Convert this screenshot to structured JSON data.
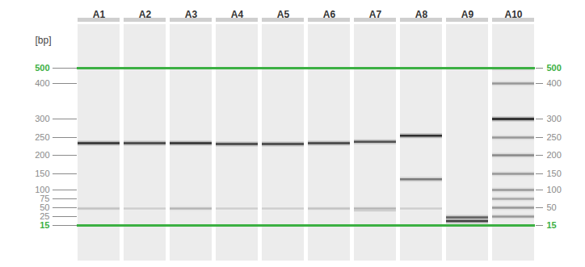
{
  "chart_data": {
    "type": "gel",
    "categories": [
      "A1",
      "A2",
      "A3",
      "A4",
      "A5",
      "A6",
      "A7",
      "A8",
      "A9",
      "A10"
    ],
    "y_label": "[bp]",
    "ylim": [
      15,
      500
    ],
    "yticks": [
      15,
      25,
      50,
      75,
      100,
      150,
      200,
      250,
      300,
      400,
      500
    ],
    "y2lim": [
      15,
      500
    ],
    "y2ticks": [
      15,
      50,
      100,
      150,
      200,
      250,
      300,
      400,
      500
    ],
    "markers": {
      "values": [
        15,
        500
      ],
      "color": "#3cb043"
    },
    "bands": [
      {
        "lane": "A1",
        "bp": 234,
        "intensity": 0.85
      },
      {
        "lane": "A1",
        "bp": 48,
        "intensity": 0.35
      },
      {
        "lane": "A2",
        "bp": 234,
        "intensity": 0.8
      },
      {
        "lane": "A2",
        "bp": 48,
        "intensity": 0.3
      },
      {
        "lane": "A3",
        "bp": 234,
        "intensity": 0.85
      },
      {
        "lane": "A3",
        "bp": 48,
        "intensity": 0.4
      },
      {
        "lane": "A4",
        "bp": 232,
        "intensity": 0.8
      },
      {
        "lane": "A4",
        "bp": 48,
        "intensity": 0.3
      },
      {
        "lane": "A5",
        "bp": 232,
        "intensity": 0.8
      },
      {
        "lane": "A5",
        "bp": 48,
        "intensity": 0.3
      },
      {
        "lane": "A6",
        "bp": 234,
        "intensity": 0.8
      },
      {
        "lane": "A6",
        "bp": 48,
        "intensity": 0.35
      },
      {
        "lane": "A7",
        "bp": 238,
        "intensity": 0.75
      },
      {
        "lane": "A7",
        "bp": 48,
        "intensity": 0.4
      },
      {
        "lane": "A7",
        "bp": 42,
        "intensity": 0.3
      },
      {
        "lane": "A8",
        "bp": 255,
        "intensity": 0.85
      },
      {
        "lane": "A8",
        "bp": 133,
        "intensity": 0.6
      },
      {
        "lane": "A8",
        "bp": 48,
        "intensity": 0.3
      },
      {
        "lane": "A9",
        "bp": 24,
        "intensity": 0.7
      },
      {
        "lane": "A9",
        "bp": 20,
        "intensity": 0.8
      },
      {
        "lane": "A10",
        "bp": 500,
        "intensity": 0.5
      },
      {
        "lane": "A10",
        "bp": 400,
        "intensity": 0.5
      },
      {
        "lane": "A10",
        "bp": 300,
        "intensity": 0.9
      },
      {
        "lane": "A10",
        "bp": 250,
        "intensity": 0.5
      },
      {
        "lane": "A10",
        "bp": 200,
        "intensity": 0.55
      },
      {
        "lane": "A10",
        "bp": 150,
        "intensity": 0.5
      },
      {
        "lane": "A10",
        "bp": 100,
        "intensity": 0.5
      },
      {
        "lane": "A10",
        "bp": 75,
        "intensity": 0.45
      },
      {
        "lane": "A10",
        "bp": 50,
        "intensity": 0.5
      },
      {
        "lane": "A10",
        "bp": 25,
        "intensity": 0.5
      }
    ]
  }
}
